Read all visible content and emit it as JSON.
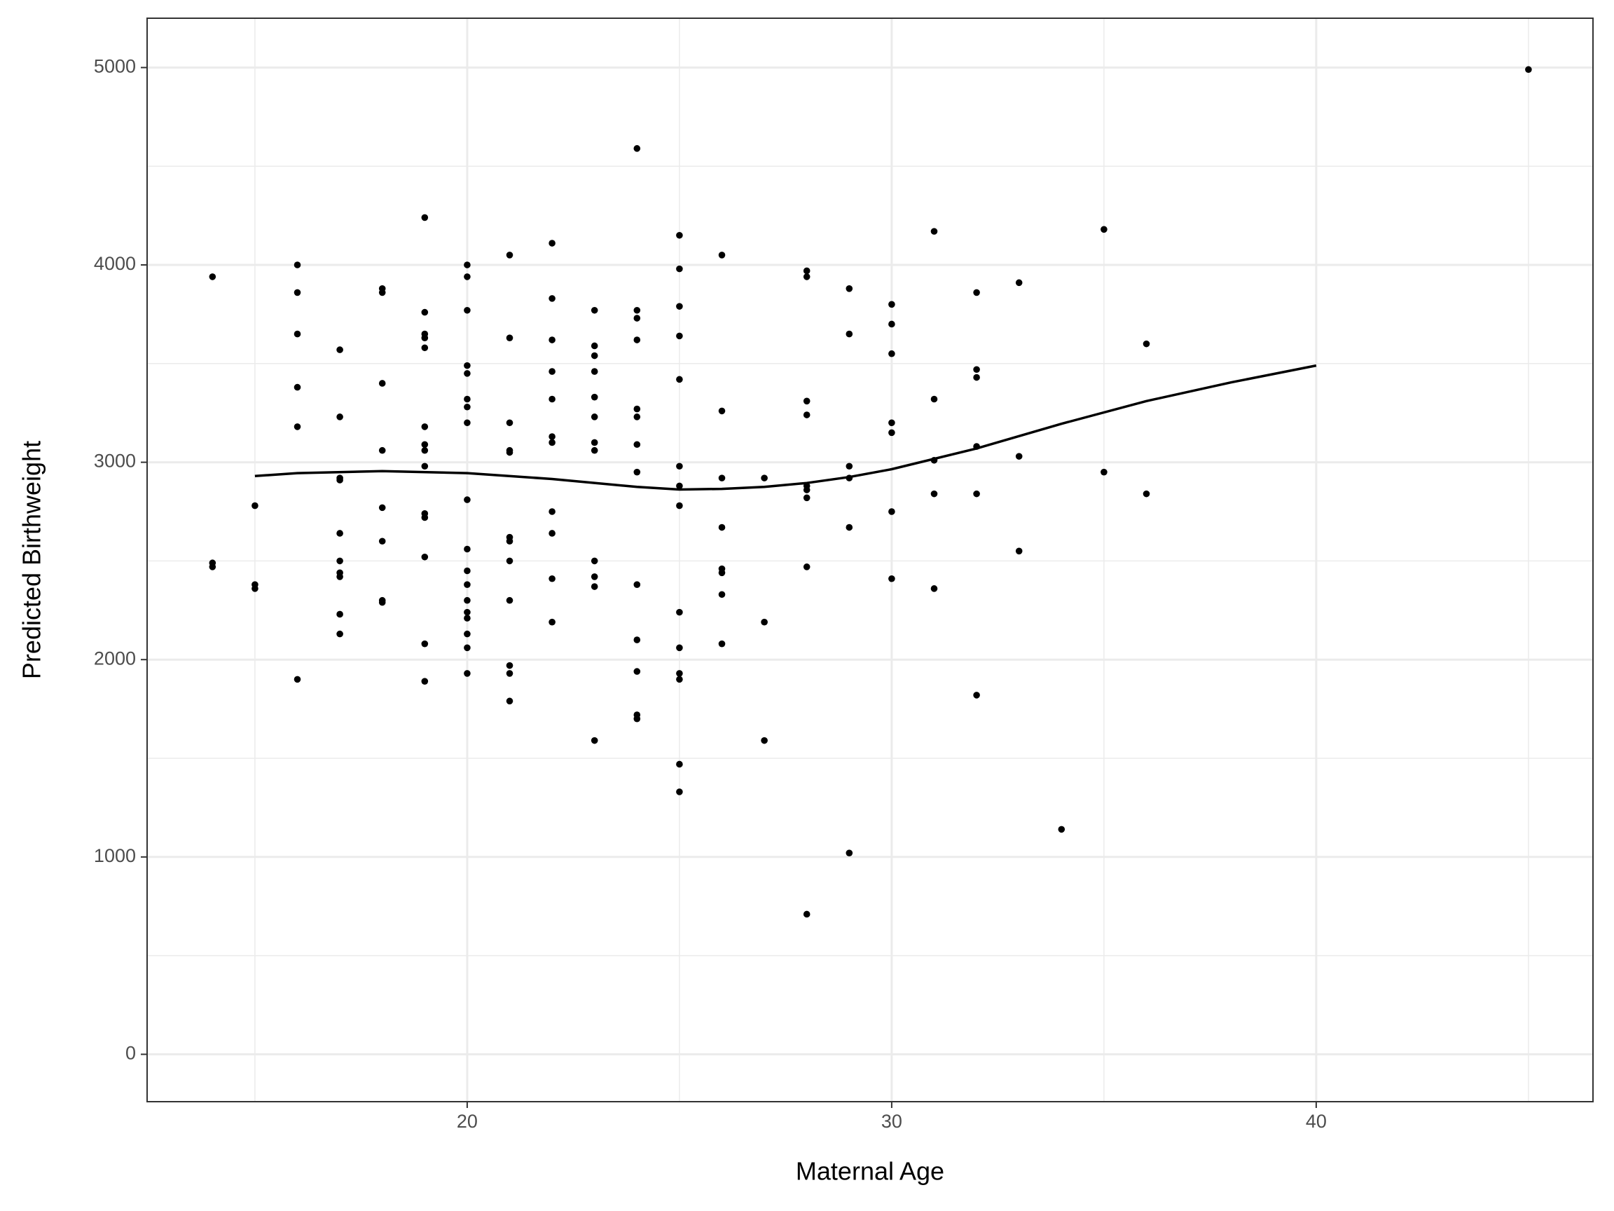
{
  "chart_data": {
    "type": "scatter",
    "xlabel": "Maternal Age",
    "ylabel": "Predicted Birthweight",
    "xlim": [
      12.46,
      46.52
    ],
    "ylim": [
      -240,
      5250
    ],
    "xticks": [
      20,
      30,
      40
    ],
    "yticks": [
      0,
      1000,
      2000,
      3000,
      4000,
      5000
    ],
    "xminor": [
      15,
      25,
      35,
      45
    ],
    "yminor": [
      500,
      1500,
      2500,
      3500,
      4500
    ],
    "grid": true,
    "point_color": "#000000",
    "line_color": "#000000",
    "x": [
      14,
      14,
      14,
      15,
      15,
      15,
      16,
      16,
      16,
      16,
      16,
      16,
      17,
      17,
      17,
      17,
      17,
      17,
      17,
      17,
      17,
      17,
      18,
      18,
      18,
      18,
      18,
      18,
      18,
      18,
      19,
      19,
      19,
      19,
      19,
      19,
      19,
      19,
      19,
      19,
      19,
      19,
      19,
      19,
      20,
      20,
      20,
      20,
      20,
      20,
      20,
      20,
      20,
      20,
      20,
      20,
      20,
      20,
      20,
      20,
      20,
      20,
      21,
      21,
      21,
      21,
      21,
      21,
      21,
      21,
      21,
      21,
      21,
      21,
      22,
      22,
      22,
      22,
      22,
      22,
      22,
      22,
      22,
      22,
      22,
      23,
      23,
      23,
      23,
      23,
      23,
      23,
      23,
      23,
      23,
      23,
      23,
      24,
      24,
      24,
      24,
      24,
      24,
      24,
      24,
      24,
      24,
      24,
      24,
      24,
      25,
      25,
      25,
      25,
      25,
      25,
      25,
      25,
      25,
      25,
      25,
      25,
      25,
      25,
      26,
      26,
      26,
      26,
      26,
      26,
      26,
      26,
      27,
      27,
      27,
      28,
      28,
      28,
      28,
      28,
      28,
      28,
      28,
      28,
      29,
      29,
      29,
      29,
      29,
      29,
      30,
      30,
      30,
      30,
      30,
      30,
      30,
      31,
      31,
      31,
      31,
      31,
      32,
      32,
      32,
      32,
      32,
      32,
      33,
      33,
      33,
      34,
      35,
      35,
      36,
      36,
      45
    ],
    "y": [
      3940,
      2490,
      2470,
      2780,
      2380,
      2360,
      4000,
      3860,
      3650,
      3380,
      3180,
      1900,
      3570,
      3230,
      2920,
      2910,
      2640,
      2500,
      2440,
      2420,
      2230,
      2130,
      3880,
      3860,
      3400,
      3060,
      2770,
      2600,
      2300,
      2290,
      4240,
      3760,
      3650,
      3630,
      3580,
      3180,
      3090,
      3060,
      2980,
      2740,
      2720,
      2520,
      2080,
      1890,
      4000,
      3940,
      3770,
      3490,
      3450,
      3320,
      3280,
      3200,
      2810,
      2560,
      2450,
      2380,
      2300,
      2240,
      2210,
      2130,
      2060,
      1930,
      4050,
      3630,
      3200,
      3060,
      3050,
      2620,
      2600,
      2500,
      2300,
      1970,
      1930,
      1790,
      4110,
      3830,
      3620,
      3460,
      3320,
      3130,
      3100,
      2750,
      2640,
      2410,
      2190,
      3770,
      3590,
      3540,
      3460,
      3330,
      3230,
      3100,
      3060,
      2500,
      2420,
      2370,
      1590,
      4590,
      3770,
      3730,
      3620,
      3270,
      3230,
      3090,
      2950,
      2380,
      2100,
      1940,
      1720,
      1700,
      4150,
      3980,
      3790,
      3640,
      3420,
      2980,
      2880,
      2780,
      2240,
      2060,
      1930,
      1900,
      1470,
      1330,
      4050,
      3260,
      2920,
      2670,
      2460,
      2440,
      2330,
      2080,
      2920,
      2190,
      1590,
      3970,
      3940,
      3310,
      3240,
      2880,
      2860,
      2820,
      2470,
      710,
      3880,
      3650,
      2980,
      2920,
      2670,
      1020,
      3800,
      3700,
      3550,
      3200,
      3150,
      2750,
      2410,
      4170,
      3320,
      3010,
      2840,
      2360,
      3860,
      3470,
      3430,
      3080,
      2840,
      1820,
      3910,
      3030,
      2550,
      1140,
      4180,
      2950,
      3600,
      2840,
      4990
    ],
    "smooth": {
      "x": [
        15,
        16,
        18,
        20,
        22,
        24,
        25,
        26,
        27,
        28,
        29,
        30,
        32,
        34,
        36,
        38,
        40
      ],
      "y": [
        2930,
        2945,
        2955,
        2945,
        2915,
        2875,
        2862,
        2865,
        2875,
        2895,
        2925,
        2965,
        3070,
        3195,
        3310,
        3405,
        3490
      ]
    }
  }
}
